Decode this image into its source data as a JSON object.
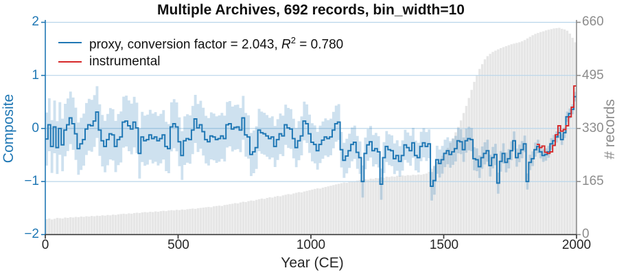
{
  "title": "Multiple Archives, 692 records, bin_width=10",
  "legend": {
    "proxy": {
      "prefix": "proxy, conversion factor = 2.043, ",
      "r_symbol": "R",
      "r_exponent": "2",
      "suffix": " = 0.780"
    },
    "instrumental_label": "instrumental"
  },
  "axes": {
    "left": {
      "label": "Composite",
      "ticks": [
        "2",
        "1",
        "0",
        "−1",
        "−2"
      ]
    },
    "right": {
      "label": "# records",
      "ticks": [
        "660",
        "495",
        "330",
        "165",
        "0"
      ]
    },
    "bottom": {
      "label": "Year (CE)",
      "ticks": [
        "0",
        "500",
        "1000",
        "1500",
        "2000"
      ]
    }
  },
  "colors": {
    "proxy": "#1f77b4",
    "instrumental": "#d62728",
    "band": "rgba(31,119,180,0.22)",
    "bars": "#e6e6e6",
    "grid": "#b9d5ea",
    "left_axis": "#1f77b4",
    "right_axis": "#8c8c8c",
    "bottom_axis": "#3b3b3b",
    "title_color": "#111111"
  },
  "chart_data": {
    "type": "line",
    "title": "Multiple Archives, 692 records, bin_width=10",
    "xlabel": "Year (CE)",
    "ylabel_left": "Composite",
    "ylabel_right": "# records",
    "xlim": [
      0,
      2000
    ],
    "ylim_left": [
      -2,
      2
    ],
    "ylim_right": [
      0,
      660
    ],
    "grid": "horizontal gridlines at left-axis ticks",
    "legend_position": "upper left",
    "bin_width": 10,
    "x_start": 0,
    "x_step": 10,
    "n_bins": 200,
    "proxy_step_values": [
      -0.2,
      0.07,
      -0.34,
      0.03,
      -0.36,
      0.0,
      -0.31,
      -0.03,
      0.07,
      0.2,
      0.09,
      -0.1,
      -0.38,
      -0.29,
      -0.21,
      -0.01,
      0.07,
      0.05,
      0.14,
      0.31,
      -0.03,
      -0.23,
      -0.34,
      -0.21,
      -0.1,
      -0.12,
      -0.34,
      -0.21,
      -0.16,
      0.12,
      0.14,
      0.05,
      -0.01,
      0.12,
      0.01,
      -0.47,
      -0.16,
      -0.23,
      -0.21,
      -0.12,
      -0.19,
      -0.16,
      -0.23,
      -0.19,
      -0.12,
      -0.34,
      -0.38,
      0.03,
      0.09,
      0.03,
      -0.25,
      -0.51,
      -0.23,
      -0.19,
      -0.21,
      -0.03,
      0.18,
      0.01,
      0.07,
      -0.06,
      -0.21,
      -0.25,
      -0.14,
      -0.16,
      -0.21,
      -0.19,
      -0.14,
      -0.19,
      0.07,
      0.09,
      -0.01,
      0.02,
      0.03,
      -0.03,
      0.2,
      -0.12,
      -0.16,
      -0.49,
      -0.44,
      -0.36,
      -0.03,
      -0.08,
      -0.1,
      -0.14,
      -0.19,
      -0.16,
      -0.34,
      -0.21,
      -0.1,
      -0.14,
      0.07,
      0.01,
      -0.01,
      -0.19,
      -0.36,
      -0.23,
      -0.14,
      0.14,
      0.09,
      -0.1,
      -0.26,
      -0.3,
      -0.42,
      -0.3,
      -0.22,
      -0.16,
      -0.19,
      -0.16,
      -0.03,
      0.09,
      0.12,
      -0.4,
      -0.6,
      -0.52,
      -0.42,
      -0.3,
      -0.26,
      -0.45,
      -0.55,
      -1.0,
      -0.47,
      -0.31,
      -0.25,
      -0.42,
      -0.38,
      -0.44,
      -1.05,
      -0.55,
      -0.34,
      -0.4,
      -0.42,
      -0.57,
      -0.51,
      -0.62,
      -0.51,
      -0.31,
      -0.36,
      -0.42,
      -0.27,
      -0.51,
      -0.55,
      -0.34,
      -0.27,
      -0.34,
      -0.29,
      -1.09,
      -0.98,
      -0.59,
      -0.66,
      -0.59,
      -0.47,
      -0.42,
      -0.49,
      -0.44,
      -0.38,
      -0.23,
      -0.25,
      -0.4,
      -0.23,
      -0.19,
      -0.21,
      -0.57,
      -0.59,
      -0.72,
      -0.55,
      -0.47,
      -0.42,
      -0.7,
      -0.55,
      -0.49,
      -1.03,
      -0.62,
      -0.47,
      -0.64,
      -0.57,
      -0.42,
      -0.23,
      -0.55,
      -0.47,
      -0.4,
      -0.29,
      -1.0,
      -0.64,
      -0.57,
      -0.4,
      -0.34,
      -0.44,
      -0.51,
      -0.49,
      -0.44,
      -0.29,
      -0.23,
      -0.16,
      -0.08,
      -0.21,
      -0.08,
      0.22,
      0.28,
      0.36,
      0.6
    ],
    "proxy_band_halfwidth_control_points": [
      [
        0,
        0.5
      ],
      [
        300,
        0.48
      ],
      [
        600,
        0.45
      ],
      [
        800,
        0.4
      ],
      [
        1000,
        0.36
      ],
      [
        1100,
        0.34
      ],
      [
        1200,
        0.3
      ],
      [
        1400,
        0.28
      ],
      [
        1500,
        0.26
      ],
      [
        1600,
        0.22
      ],
      [
        1700,
        0.2
      ],
      [
        1800,
        0.16
      ],
      [
        1850,
        0.13
      ],
      [
        1900,
        0.11
      ],
      [
        1950,
        0.1
      ],
      [
        2000,
        0.09
      ]
    ],
    "instrumental_x_start": 1850,
    "instrumental_step_values": [
      -0.3,
      -0.36,
      -0.33,
      -0.45,
      -0.47,
      -0.44,
      -0.32,
      -0.12,
      0.05,
      -0.05,
      -0.02,
      0.05,
      0.22,
      0.4,
      0.8
    ],
    "records_bar_values": [
      48,
      50,
      47,
      49,
      52,
      51,
      50,
      53,
      52,
      54,
      53,
      55,
      54,
      56,
      55,
      57,
      56,
      58,
      57,
      59,
      58,
      60,
      59,
      61,
      60,
      62,
      61,
      63,
      64,
      65,
      64,
      66,
      65,
      67,
      68,
      67,
      69,
      70,
      69,
      71,
      70,
      72,
      71,
      73,
      74,
      73,
      75,
      76,
      75,
      77,
      76,
      78,
      77,
      79,
      80,
      81,
      80,
      82,
      83,
      84,
      85,
      86,
      85,
      88,
      89,
      90,
      89,
      92,
      93,
      95,
      96,
      98,
      97,
      100,
      102,
      101,
      104,
      106,
      105,
      108,
      110,
      112,
      111,
      114,
      116,
      115,
      118,
      120,
      119,
      122,
      124,
      126,
      125,
      128,
      130,
      132,
      131,
      134,
      136,
      138,
      140,
      142,
      144,
      143,
      146,
      148,
      150,
      152,
      154,
      156,
      158,
      160,
      162,
      161,
      164,
      166,
      165,
      168,
      170,
      169,
      172,
      171,
      174,
      173,
      176,
      175,
      178,
      177,
      180,
      179,
      181,
      180,
      183,
      182,
      184,
      183,
      185,
      184,
      186,
      185,
      187,
      186,
      188,
      190,
      195,
      205,
      215,
      225,
      235,
      245,
      258,
      270,
      285,
      300,
      318,
      335,
      355,
      378,
      400,
      425,
      450,
      475,
      495,
      515,
      530,
      545,
      555,
      562,
      568,
      572,
      576,
      580,
      583,
      586,
      589,
      592,
      594,
      596,
      598,
      601,
      605,
      610,
      615,
      620,
      624,
      627,
      630,
      632,
      635,
      637,
      639,
      641,
      642,
      643,
      640,
      638,
      634,
      625,
      612,
      598
    ]
  }
}
